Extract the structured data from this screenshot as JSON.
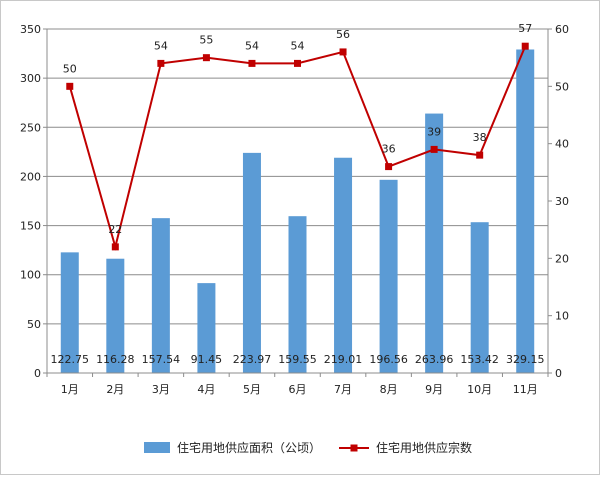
{
  "chart_data": {
    "type": "bar+line",
    "title": "",
    "categories": [
      "1月",
      "2月",
      "3月",
      "4月",
      "5月",
      "6月",
      "7月",
      "8月",
      "9月",
      "10月",
      "11月"
    ],
    "series": [
      {
        "name": "住宅用地供应面积（公顷）",
        "type": "bar",
        "axis": "left",
        "color": "#5b9bd5",
        "values": [
          122.75,
          116.28,
          157.54,
          91.45,
          223.97,
          159.55,
          219.01,
          196.56,
          263.96,
          153.42,
          329.15
        ]
      },
      {
        "name": "住宅用地供应宗数",
        "type": "line",
        "axis": "right",
        "color": "#c00000",
        "values": [
          50,
          22,
          54,
          55,
          54,
          54,
          56,
          36,
          39,
          38,
          57
        ]
      }
    ],
    "y_left": {
      "min": 0,
      "max": 350,
      "step": 50
    },
    "y_right": {
      "min": 0,
      "max": 60,
      "step": 10
    },
    "grid": true,
    "legend_position": "bottom"
  }
}
